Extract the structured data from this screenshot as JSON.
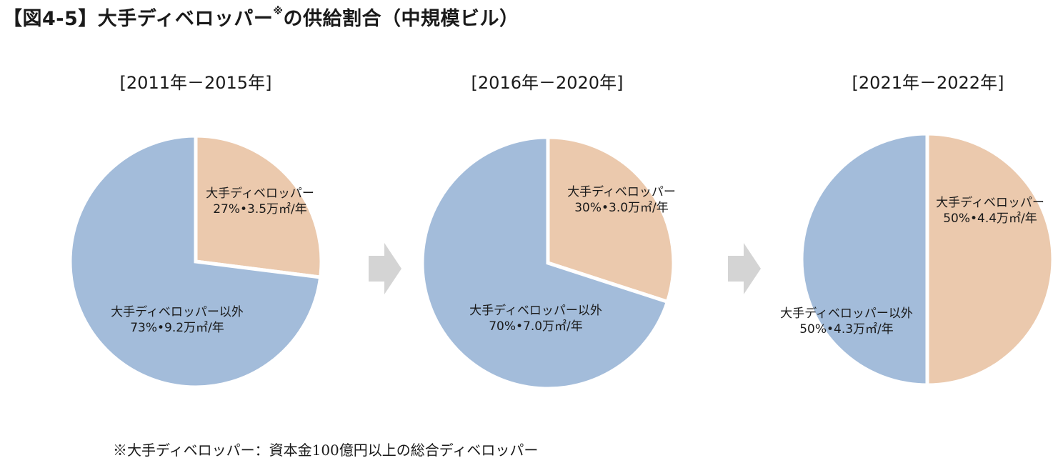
{
  "figure": {
    "title_main": "【図4-5】大手ディベロッパー",
    "title_mark": "※",
    "title_tail": "の供給割合（中規模ビル）",
    "footnote": "※大手ディベロッパー：資本金100億円以上の総合ディベロッパー"
  },
  "colors": {
    "major": "#ebc9ad",
    "other": "#a3bcda",
    "arrow": "#d4d4d4"
  },
  "chart_data": [
    {
      "type": "pie",
      "title": "[2011年－2015年]",
      "slices": [
        {
          "name": "大手ディベロッパー",
          "share_pct": 27,
          "supply_man_m2_per_year": 3.5,
          "label_line1": "大手ディベロッパー",
          "label_line2": "27%•3.5万㎡/年",
          "color": "#ebc9ad"
        },
        {
          "name": "大手ディベロッパー以外",
          "share_pct": 73,
          "supply_man_m2_per_year": 9.2,
          "label_line1": "大手ディベロッパー以外",
          "label_line2": "73%•9.2万㎡/年",
          "color": "#a3bcda"
        }
      ]
    },
    {
      "type": "pie",
      "title": "[2016年－2020年]",
      "slices": [
        {
          "name": "大手ディベロッパー",
          "share_pct": 30,
          "supply_man_m2_per_year": 3.0,
          "label_line1": "大手ディベロッパー",
          "label_line2": "30%•3.0万㎡/年",
          "color": "#ebc9ad"
        },
        {
          "name": "大手ディベロッパー以外",
          "share_pct": 70,
          "supply_man_m2_per_year": 7.0,
          "label_line1": "大手ディベロッパー以外",
          "label_line2": "70%•7.0万㎡/年",
          "color": "#a3bcda"
        }
      ]
    },
    {
      "type": "pie",
      "title": "[2021年－2022年]",
      "slices": [
        {
          "name": "大手ディベロッパー",
          "share_pct": 50,
          "supply_man_m2_per_year": 4.4,
          "label_line1": "大手ディベロッパー",
          "label_line2": "50%•4.4万㎡/年",
          "color": "#ebc9ad"
        },
        {
          "name": "大手ディベロッパー以外",
          "share_pct": 50,
          "supply_man_m2_per_year": 4.3,
          "label_line1": "大手ディベロッパー以外",
          "label_line2": "50%•4.3万㎡/年",
          "color": "#a3bcda"
        }
      ]
    }
  ]
}
